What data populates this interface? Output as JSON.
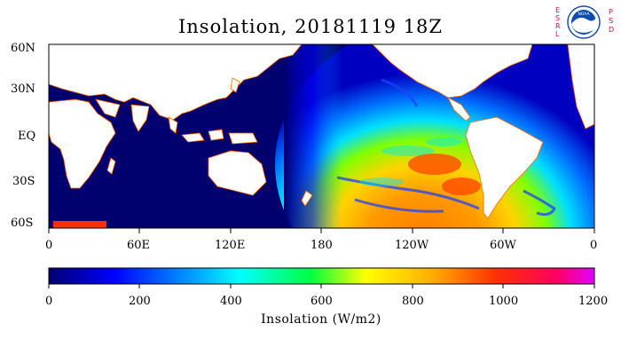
{
  "title": "Insolation, 20181119 18Z",
  "logo": {
    "center_text": "NOAA",
    "left_letters": [
      "E",
      "S",
      "R",
      "L"
    ],
    "right_letters": [
      "P",
      "S",
      "D"
    ]
  },
  "map": {
    "lat_labels": [
      "60N",
      "30N",
      "EQ",
      "30S",
      "60S"
    ],
    "lon_labels": [
      "0",
      "60E",
      "120E",
      "180",
      "120W",
      "60W",
      "0"
    ],
    "land_color": "#ffffff",
    "ocean_night_color": "#00006e"
  },
  "colorbar": {
    "title": "Insolation (W/m2)",
    "ticks": [
      "0",
      "200",
      "400",
      "600",
      "800",
      "1000",
      "1200"
    ],
    "range": [
      0,
      1200
    ],
    "colors": [
      "#000080",
      "#0000ff",
      "#00bfff",
      "#00ffff",
      "#00ff00",
      "#ffff00",
      "#ff8c00",
      "#ff0000",
      "#ff00ff"
    ]
  }
}
